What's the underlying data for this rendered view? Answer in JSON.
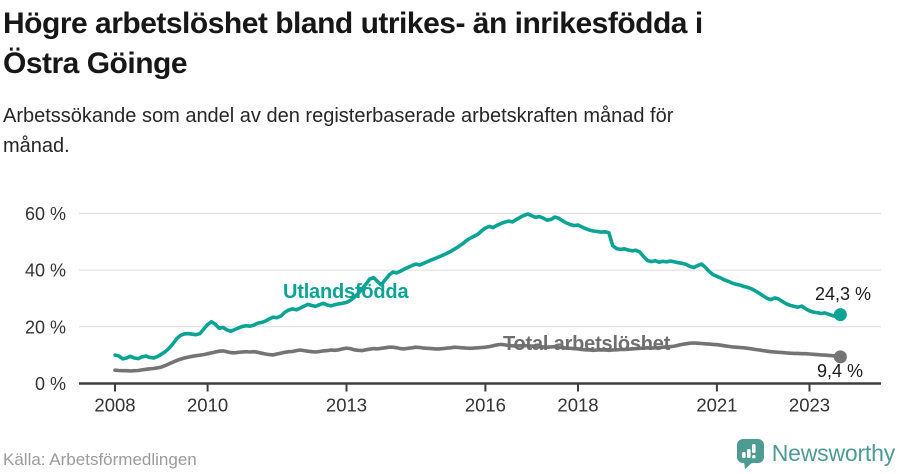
{
  "header": {
    "title": "Högre arbetslöshet bland utrikes- än inrikesfödda i\nÖstra Göinge",
    "subtitle": "Arbetssökande som andel av den registerbaserade arbetskraften månad för\nmånad."
  },
  "footer": {
    "source": "Källa: Arbetsförmedlingen",
    "brand": "Newsworthy",
    "brand_icon": "bar-chart-speech-bubble",
    "brand_color": "#4e9b94"
  },
  "colors": {
    "series_utlandsfodda": "#0ba394",
    "series_total": "#747474",
    "total_label": "#6f6f6f",
    "gridline": "#dcdcdc",
    "axis": "#3d3d3d",
    "tick_label": "#333333",
    "value_label": "#1a1a1a"
  },
  "chart_data": {
    "type": "line",
    "title": "Högre arbetslöshet bland utrikes- än inrikesfödda i Östra Göinge",
    "xlabel": "",
    "ylabel": "Arbetssökande som andel av den registerbaserade arbetskraften",
    "x_unit": "month",
    "x_start_year": 2008,
    "points_per_year": 12,
    "x_tick_years": [
      2008,
      2010,
      2013,
      2016,
      2018,
      2021,
      2023
    ],
    "x_tick_labels": [
      "2008",
      "2010",
      "2013",
      "2016",
      "2018",
      "2021",
      "2023"
    ],
    "y_tick_values": [
      0,
      20,
      40,
      60
    ],
    "y_tick_labels": [
      "0 %",
      "20 %",
      "40 %",
      "60 %"
    ],
    "ylim": [
      0,
      63
    ],
    "grid": "horizontal",
    "legend_position": "inline-labels",
    "series": [
      {
        "name": "Utlandsfödda",
        "color": "#0ba394",
        "end_label": "24,3 %",
        "end_value": 24.3,
        "values": [
          10.0,
          9.7,
          8.7,
          9.0,
          9.6,
          9.0,
          8.8,
          9.4,
          9.7,
          9.2,
          9.0,
          9.5,
          10.3,
          11.2,
          12.4,
          14.0,
          15.8,
          17.0,
          17.5,
          17.6,
          17.4,
          17.2,
          17.6,
          19.2,
          20.8,
          21.8,
          20.9,
          19.5,
          19.8,
          18.9,
          18.4,
          19.0,
          19.6,
          20.1,
          20.4,
          20.2,
          20.6,
          21.3,
          21.5,
          22.0,
          22.8,
          23.4,
          23.2,
          23.8,
          25.1,
          25.9,
          26.3,
          26.0,
          26.6,
          27.3,
          27.9,
          27.5,
          27.2,
          27.8,
          28.3,
          27.7,
          27.4,
          27.8,
          28.1,
          28.3,
          28.6,
          29.3,
          30.4,
          31.7,
          33.2,
          35.0,
          36.8,
          37.4,
          36.0,
          34.8,
          36.5,
          38.2,
          39.3,
          39.0,
          39.6,
          40.4,
          41.0,
          41.6,
          42.1,
          41.8,
          42.4,
          43.0,
          43.6,
          44.1,
          44.7,
          45.3,
          45.9,
          46.6,
          47.4,
          48.3,
          49.2,
          50.3,
          51.2,
          51.9,
          52.6,
          53.8,
          54.8,
          55.4,
          55.0,
          55.8,
          56.4,
          56.9,
          57.3,
          57.0,
          57.8,
          58.6,
          59.3,
          59.8,
          59.2,
          58.6,
          58.9,
          58.3,
          57.6,
          57.9,
          58.7,
          58.3,
          57.4,
          56.6,
          56.1,
          55.7,
          55.9,
          55.2,
          54.6,
          54.1,
          53.8,
          53.6,
          53.4,
          53.5,
          53.2,
          48.6,
          47.6,
          47.3,
          47.5,
          47.1,
          46.8,
          47.0,
          46.4,
          44.8,
          43.4,
          43.0,
          43.3,
          42.8,
          43.1,
          42.9,
          43.2,
          42.9,
          42.6,
          42.4,
          42.0,
          41.3,
          40.9,
          41.6,
          42.1,
          41.0,
          39.5,
          38.4,
          37.8,
          37.2,
          36.5,
          36.0,
          35.4,
          35.0,
          34.7,
          34.2,
          33.9,
          33.4,
          32.6,
          31.8,
          30.9,
          30.0,
          29.6,
          30.2,
          29.8,
          28.9,
          28.1,
          27.6,
          27.2,
          26.9,
          27.3,
          26.4,
          25.6,
          25.2,
          25.0,
          24.7,
          24.9,
          24.4,
          23.9,
          23.7,
          24.3
        ]
      },
      {
        "name": "Total arbetslöshet",
        "color": "#747474",
        "end_label": "9,4 %",
        "end_value": 9.4,
        "values": [
          4.7,
          4.6,
          4.5,
          4.5,
          4.4,
          4.5,
          4.6,
          4.8,
          5.0,
          5.2,
          5.3,
          5.5,
          5.8,
          6.3,
          6.9,
          7.5,
          8.1,
          8.6,
          9.0,
          9.3,
          9.6,
          9.8,
          10.0,
          10.2,
          10.5,
          10.8,
          11.1,
          11.4,
          11.5,
          11.2,
          10.9,
          10.8,
          11.0,
          11.1,
          11.2,
          11.1,
          11.2,
          11.0,
          10.7,
          10.4,
          10.2,
          10.1,
          10.4,
          10.7,
          11.0,
          11.2,
          11.3,
          11.6,
          11.8,
          11.6,
          11.4,
          11.2,
          11.1,
          11.3,
          11.5,
          11.6,
          11.8,
          11.7,
          11.9,
          12.2,
          12.5,
          12.3,
          11.9,
          11.7,
          11.6,
          11.9,
          12.1,
          12.3,
          12.2,
          12.4,
          12.6,
          12.8,
          12.8,
          12.6,
          12.3,
          12.2,
          12.4,
          12.6,
          12.8,
          12.7,
          12.5,
          12.4,
          12.3,
          12.2,
          12.2,
          12.3,
          12.5,
          12.6,
          12.8,
          12.7,
          12.6,
          12.5,
          12.4,
          12.5,
          12.6,
          12.7,
          12.8,
          13.0,
          13.3,
          13.6,
          13.8,
          13.6,
          13.4,
          13.3,
          13.2,
          13.3,
          13.4,
          13.3,
          13.2,
          13.1,
          13.0,
          12.9,
          12.8,
          12.9,
          13.0,
          12.9,
          12.7,
          12.5,
          12.4,
          12.3,
          12.2,
          12.0,
          11.9,
          11.8,
          11.7,
          11.8,
          11.9,
          11.8,
          11.7,
          11.8,
          11.9,
          12.0,
          12.0,
          12.1,
          12.2,
          12.3,
          12.4,
          12.5,
          12.6,
          12.5,
          12.6,
          12.7,
          12.8,
          12.9,
          13.0,
          13.2,
          13.5,
          13.8,
          14.0,
          14.2,
          14.3,
          14.2,
          14.1,
          14.0,
          13.9,
          13.8,
          13.7,
          13.5,
          13.3,
          13.1,
          12.9,
          12.8,
          12.7,
          12.6,
          12.4,
          12.2,
          12.0,
          11.8,
          11.6,
          11.4,
          11.2,
          11.1,
          11.0,
          10.9,
          10.8,
          10.7,
          10.6,
          10.6,
          10.5,
          10.5,
          10.4,
          10.3,
          10.2,
          10.1,
          10.0,
          9.9,
          9.8,
          9.6,
          9.4
        ]
      }
    ]
  }
}
